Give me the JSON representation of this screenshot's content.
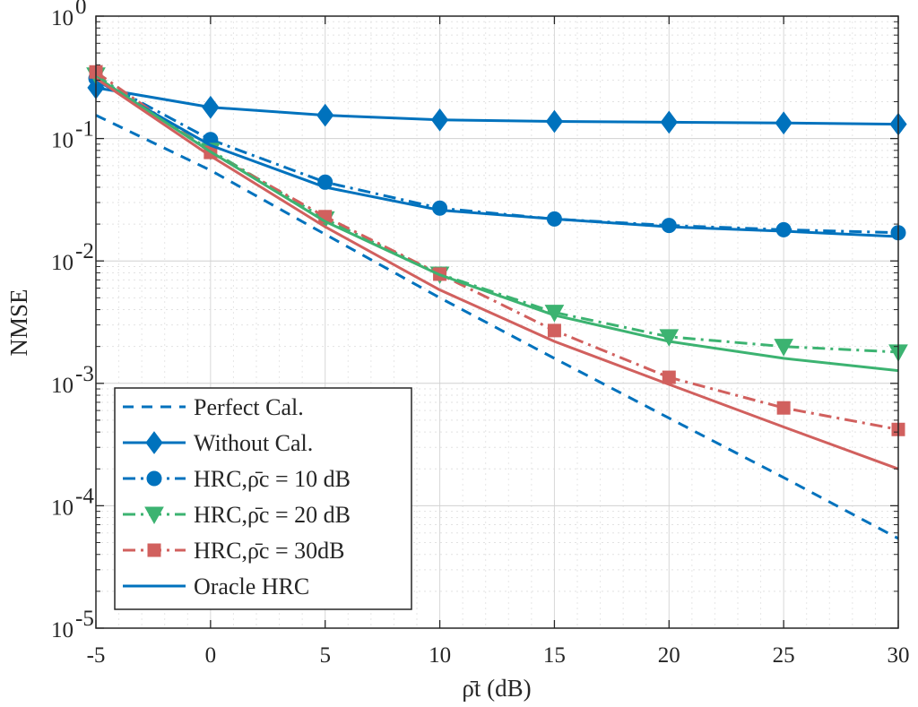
{
  "chart_data": {
    "type": "line",
    "xlabel": "ρ̄t (dB)",
    "ylabel": "NMSE",
    "x": [
      -5,
      0,
      5,
      10,
      15,
      20,
      25,
      30
    ],
    "xlim": [
      -5,
      30
    ],
    "ylim": [
      1e-05,
      1
    ],
    "yscale": "log",
    "grid": true,
    "legend_position": "bottom-left",
    "x_ticks": [
      "-5",
      "0",
      "5",
      "10",
      "15",
      "20",
      "25",
      "30"
    ],
    "y_ticks": [
      {
        "value": 1,
        "base": "10",
        "exp": "0"
      },
      {
        "value": 0.1,
        "base": "10",
        "exp": "-1"
      },
      {
        "value": 0.01,
        "base": "10",
        "exp": "-2"
      },
      {
        "value": 0.001,
        "base": "10",
        "exp": "-3"
      },
      {
        "value": 0.0001,
        "base": "10",
        "exp": "-4"
      },
      {
        "value": 1e-05,
        "base": "10",
        "exp": "-5"
      }
    ],
    "series": [
      {
        "name": "Perfect Cal.",
        "color": "#0072BD",
        "line": "dashed",
        "marker": "none",
        "values": [
          0.155,
          0.055,
          0.0165,
          0.005,
          0.0016,
          0.00052,
          0.00017,
          5.4e-05
        ]
      },
      {
        "name": "Without Cal.",
        "color": "#0072BD",
        "line": "solid",
        "marker": "diamond",
        "values": [
          0.26,
          0.18,
          0.155,
          0.142,
          0.138,
          0.136,
          0.134,
          0.131
        ]
      },
      {
        "name": "HRC,ρ̄c = 10 dB",
        "color": "#0072BD",
        "line": "dashdot",
        "marker": "circle",
        "values": [
          0.31,
          0.098,
          0.044,
          0.027,
          0.022,
          0.0195,
          0.018,
          0.017
        ]
      },
      {
        "name": "HRC,ρ̄c = 20 dB",
        "color": "#3CB371",
        "line": "dashdot",
        "marker": "triangle-down",
        "values": [
          0.33,
          0.08,
          0.022,
          0.0078,
          0.0038,
          0.0024,
          0.002,
          0.0018
        ]
      },
      {
        "name": "HRC,ρ̄c = 30dB",
        "color": "#D1605E",
        "line": "dashdot",
        "marker": "square",
        "values": [
          0.35,
          0.077,
          0.023,
          0.0078,
          0.0027,
          0.00112,
          0.00063,
          0.00042
        ]
      },
      {
        "name": "Oracle HRC",
        "color": "#0072BD",
        "line": "solid",
        "marker": "none",
        "values": [
          0.3,
          0.088,
          0.04,
          0.026,
          0.022,
          0.019,
          0.0175,
          0.0158
        ]
      },
      {
        "name": "",
        "color": "#3CB371",
        "line": "solid",
        "marker": "none",
        "values": [
          0.32,
          0.078,
          0.021,
          0.0077,
          0.0036,
          0.0022,
          0.0016,
          0.00127
        ]
      },
      {
        "name": "",
        "color": "#D1605E",
        "line": "solid",
        "marker": "none",
        "values": [
          0.31,
          0.072,
          0.019,
          0.0058,
          0.0022,
          0.00098,
          0.00044,
          0.0002
        ]
      }
    ]
  }
}
